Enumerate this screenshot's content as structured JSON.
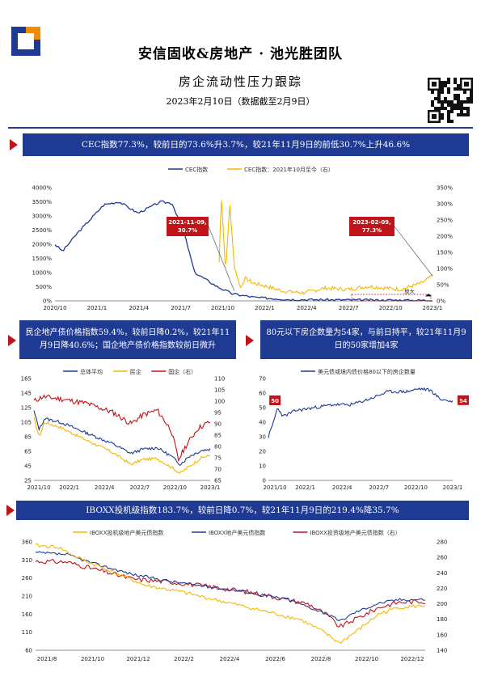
{
  "header": {
    "team_title": "安信固收&房地产 · 池光胜团队",
    "report_title": "房企流动性压力跟踪",
    "date": "2023年2月10日（数据截至2月9日）"
  },
  "colors": {
    "navy": "#1f3a93",
    "red": "#c0141a",
    "gold": "#f5b800",
    "orange": "#f08c00"
  },
  "sections": {
    "cec": {
      "banner": "CEC指数77.3%，较前日的73.6%升3.7%，较21年11月9日的前低30.7%上升46.6%"
    },
    "bond_price": {
      "banner": "民企地产债价格指数59.4%，较前日降0.2%，较21年11月9日降40.6%；国企地产债价格指数较前日微升"
    },
    "count80": {
      "banner": "80元以下房企数量为54家，与前日持平，较21年11月9日的50家增加4家"
    },
    "iboxx": {
      "banner": "IBOXX投机级指数183.7%，较前日降0.7%，较21年11月9日的219.4%降35.7%"
    }
  },
  "chart_data": [
    {
      "type": "line",
      "series": [
        {
          "name": "CEC指数",
          "color": "#1f3a93",
          "axis": "left"
        },
        {
          "name": "CEC指数：2021年10月至今（右）",
          "color": "#f5b800",
          "axis": "right"
        }
      ],
      "yticks_left": [
        "4000%",
        "3500%",
        "3000%",
        "2500%",
        "2000%",
        "1500%",
        "1000%",
        "500%",
        "0%"
      ],
      "yticks_right": [
        "350%",
        "300%",
        "250%",
        "200%",
        "150%",
        "100%",
        "50%",
        "0%"
      ],
      "ylim_left": [
        0,
        4000
      ],
      "ylim_right": [
        0,
        350
      ],
      "xticks": [
        "2020/10",
        "2021/1",
        "2021/4",
        "2021/7",
        "2021/10",
        "2022/1",
        "2022/4",
        "2022/7",
        "2022/10",
        "2023/1"
      ],
      "annotations": [
        {
          "date": "2021-11-09",
          "value": 30.7,
          "label": "2021-11-09,\n30.7%"
        },
        {
          "date": "2023-02-09",
          "value": 77.3,
          "label": "2023-02-09,\n77.3%"
        }
      ],
      "zoom_label": "放大"
    },
    {
      "type": "line",
      "series": [
        {
          "name": "总体平均",
          "color": "#1f3a93",
          "axis": "left"
        },
        {
          "name": "民企",
          "color": "#f5b800",
          "axis": "left"
        },
        {
          "name": "国企（右）",
          "color": "#c0141a",
          "axis": "right"
        }
      ],
      "yticks_left": [
        "165",
        "145",
        "125",
        "105",
        "85",
        "65",
        "45",
        "25"
      ],
      "yticks_right": [
        "110",
        "105",
        "100",
        "95",
        "90",
        "85",
        "80",
        "75",
        "70",
        "65"
      ],
      "ylim_left": [
        25,
        165
      ],
      "ylim_right": [
        65,
        110
      ],
      "xticks": [
        "2021/10",
        "2022/1",
        "2022/4",
        "2022/7",
        "2022/10",
        "2023/1"
      ]
    },
    {
      "type": "line",
      "series": [
        {
          "name": "美元债或境内债价格80以下的房企数量",
          "color": "#1f3a93"
        }
      ],
      "yticks": [
        "70",
        "60",
        "50",
        "40",
        "30",
        "20",
        "10",
        "0"
      ],
      "ylim": [
        0,
        70
      ],
      "xticks": [
        "2021/10",
        "2022/1",
        "2022/4",
        "2022/7",
        "2022/10",
        "2023/1"
      ],
      "labels": [
        {
          "value": 50,
          "label": "50"
        },
        {
          "value": 54,
          "label": "54"
        }
      ]
    },
    {
      "type": "line",
      "series": [
        {
          "name": "IBOXX投机级地产美元债指数",
          "color": "#f5b800",
          "axis": "left"
        },
        {
          "name": "IBOXX地产美元债指数",
          "color": "#1f3a93",
          "axis": "left"
        },
        {
          "name": "IBOXX投资级地产美元债指数（右）",
          "color": "#c0141a",
          "axis": "right"
        }
      ],
      "yticks_left": [
        "360",
        "310",
        "260",
        "210",
        "160",
        "110",
        "60"
      ],
      "yticks_right": [
        "280",
        "260",
        "240",
        "220",
        "200",
        "180",
        "160",
        "140"
      ],
      "ylim_left": [
        60,
        360
      ],
      "ylim_right": [
        140,
        280
      ],
      "xticks": [
        "2021/8",
        "2021/10",
        "2021/12",
        "2022/2",
        "2022/4",
        "2022/6",
        "2022/8",
        "2022/10",
        "2022/12"
      ]
    }
  ]
}
